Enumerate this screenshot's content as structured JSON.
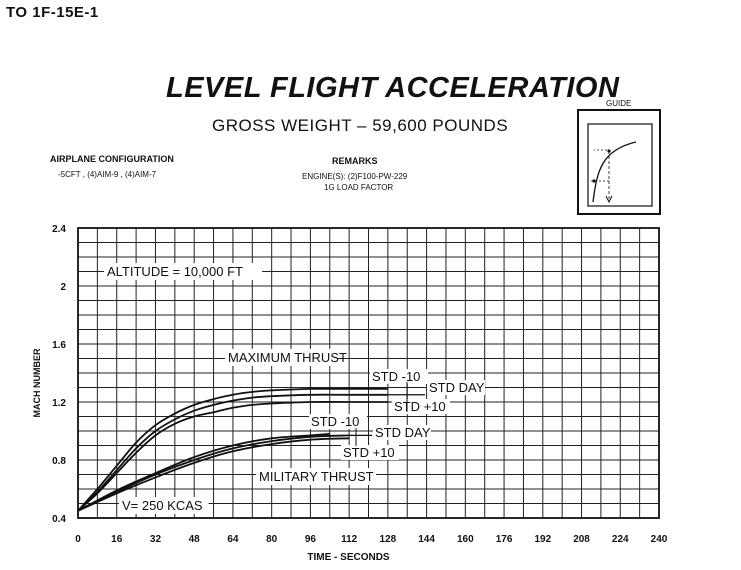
{
  "header": {
    "code": "TO  1F-15E-1"
  },
  "title": "LEVEL FLIGHT ACCELERATION",
  "subtitle": "GROSS WEIGHT – 59,600 POUNDS",
  "configuration": {
    "title": "AIRPLANE CONFIGURATION",
    "text": "-5CFT , (4)AIM-9 , (4)AIM-7"
  },
  "remarks": {
    "title": "REMARKS",
    "engine": "ENGINE(S): (2)F100-PW-229",
    "load": "1G LOAD FACTOR"
  },
  "guide": {
    "title": "GUIDE"
  },
  "chart_data": {
    "type": "line",
    "xlabel": "TIME - SECONDS",
    "ylabel": "MACH NUMBER",
    "xlim": [
      0,
      240
    ],
    "ylim": [
      0.4,
      2.4
    ],
    "x_ticks": [
      0,
      16,
      32,
      48,
      64,
      80,
      96,
      112,
      128,
      144,
      160,
      176,
      192,
      208,
      224,
      240
    ],
    "y_ticks": [
      0.4,
      0.8,
      1.2,
      1.6,
      2,
      2.4
    ],
    "grid": true,
    "annotations": {
      "altitude": "ALTITUDE = 10,000 FT",
      "max_thrust": "MAXIMUM THRUST",
      "mil_thrust": "MILITARY THRUST",
      "start_speed": "V= 250 KCAS"
    },
    "series": [
      {
        "name": "MAXIMUM THRUST STD -10",
        "label": "STD -10",
        "x": [
          0,
          8,
          16,
          24,
          32,
          40,
          48,
          56,
          64,
          72,
          80,
          96,
          112,
          128
        ],
        "y": [
          0.45,
          0.6,
          0.76,
          0.92,
          1.04,
          1.12,
          1.18,
          1.22,
          1.25,
          1.27,
          1.28,
          1.29,
          1.29,
          1.29
        ]
      },
      {
        "name": "MAXIMUM THRUST STD DAY",
        "label": "STD DAY",
        "x": [
          0,
          8,
          16,
          24,
          32,
          40,
          48,
          56,
          64,
          72,
          80,
          96,
          112,
          128
        ],
        "y": [
          0.45,
          0.58,
          0.73,
          0.88,
          1.0,
          1.08,
          1.14,
          1.18,
          1.21,
          1.23,
          1.24,
          1.25,
          1.25,
          1.25
        ]
      },
      {
        "name": "MAXIMUM THRUST STD +10",
        "label": "STD +10",
        "x": [
          0,
          8,
          16,
          24,
          32,
          40,
          48,
          56,
          64,
          72,
          80,
          96,
          112,
          128
        ],
        "y": [
          0.45,
          0.57,
          0.71,
          0.85,
          0.97,
          1.05,
          1.1,
          1.13,
          1.16,
          1.18,
          1.19,
          1.2,
          1.2,
          1.2
        ]
      },
      {
        "name": "MILITARY THRUST STD -10",
        "label": "STD -10",
        "x": [
          0,
          16,
          32,
          48,
          64,
          80,
          96,
          104
        ],
        "y": [
          0.45,
          0.59,
          0.71,
          0.82,
          0.9,
          0.95,
          0.97,
          0.98
        ]
      },
      {
        "name": "MILITARY THRUST STD DAY",
        "label": "STD DAY",
        "x": [
          0,
          16,
          32,
          48,
          64,
          80,
          96,
          112
        ],
        "y": [
          0.45,
          0.58,
          0.7,
          0.8,
          0.88,
          0.93,
          0.96,
          0.97
        ]
      },
      {
        "name": "MILITARY THRUST STD +10",
        "label": "STD +10",
        "x": [
          0,
          16,
          32,
          48,
          64,
          80,
          96,
          112
        ],
        "y": [
          0.45,
          0.57,
          0.68,
          0.78,
          0.86,
          0.91,
          0.94,
          0.95
        ]
      }
    ]
  }
}
